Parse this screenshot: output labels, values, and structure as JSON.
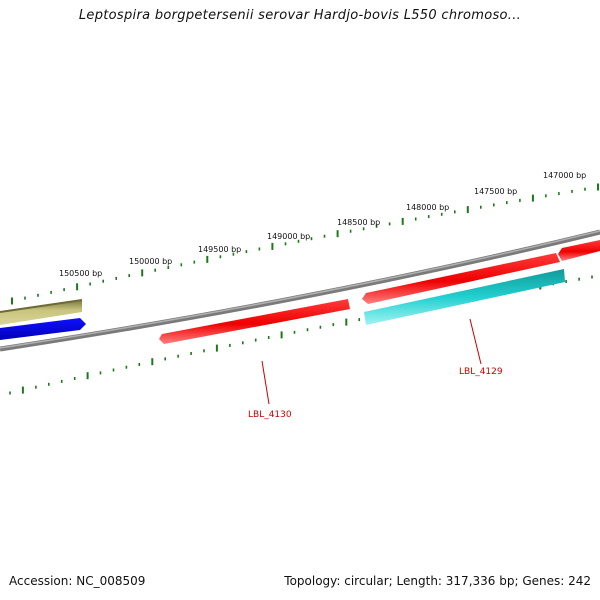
{
  "title": "Leptospira borgpetersenii serovar Hardjo-bovis L550 chromoso...",
  "accession": "Accession: NC_008509",
  "summary": "Topology: circular; Length: 317,336 bp; Genes: 242",
  "colors": {
    "backbone": "#8a8a8a",
    "tick": "#1a7a1a",
    "label_red": "#cc0000",
    "red": "#ff0000",
    "cyan": "#22cccc",
    "blue": "#0000ee",
    "olive": "#c4c07a"
  },
  "ticks": [
    {
      "label": "150500 bp"
    },
    {
      "label": "150000 bp"
    },
    {
      "label": "149500 bp"
    },
    {
      "label": "149000 bp"
    },
    {
      "label": "148500 bp"
    },
    {
      "label": "148000 bp"
    },
    {
      "label": "147500 bp"
    },
    {
      "label": "147000 bp"
    }
  ],
  "gene_labels": [
    {
      "name": "LBL_4130"
    },
    {
      "name": "LBL_4129"
    }
  ]
}
